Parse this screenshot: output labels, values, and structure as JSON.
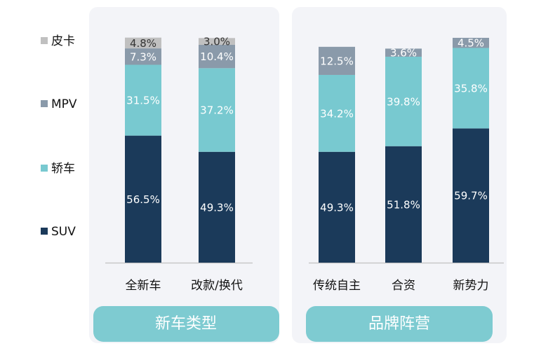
{
  "chart_data": [
    {
      "type": "stacked_bar",
      "title": "新车类型",
      "categories": [
        "全新车",
        "改款/换代"
      ],
      "ylim": [
        0,
        100
      ],
      "series": [
        {
          "name": "SUV",
          "color": "#1b3a5a",
          "values": [
            56.5,
            49.3
          ],
          "value_labels": [
            "56.5%",
            "49.3%"
          ]
        },
        {
          "name": "轿车",
          "color": "#78c9d0",
          "values": [
            31.5,
            37.2
          ],
          "value_labels": [
            "31.5%",
            "37.2%"
          ]
        },
        {
          "name": "MPV",
          "color": "#8a9aaa",
          "values": [
            7.3,
            10.4
          ],
          "value_labels": [
            "7.3%",
            "10.4%"
          ]
        },
        {
          "name": "皮卡",
          "color": "#c0c0c0",
          "values": [
            4.8,
            3.0
          ],
          "value_labels": [
            "4.8%",
            "3.0%"
          ]
        }
      ]
    },
    {
      "type": "stacked_bar",
      "title": "品牌阵营",
      "categories": [
        "传统自主",
        "合资",
        "新势力"
      ],
      "ylim": [
        0,
        100
      ],
      "series": [
        {
          "name": "SUV",
          "color": "#1b3a5a",
          "values": [
            49.3,
            51.8,
            59.7
          ],
          "value_labels": [
            "49.3%",
            "51.8%",
            "59.7%"
          ]
        },
        {
          "name": "轿车",
          "color": "#78c9d0",
          "values": [
            34.2,
            39.8,
            35.8
          ],
          "value_labels": [
            "34.2%",
            "39.8%",
            "35.8%"
          ]
        },
        {
          "name": "MPV",
          "color": "#8a9aaa",
          "values": [
            12.5,
            3.6,
            4.5
          ],
          "value_labels": [
            "12.5%",
            "3.6%",
            "4.5%"
          ]
        }
      ]
    }
  ]
}
